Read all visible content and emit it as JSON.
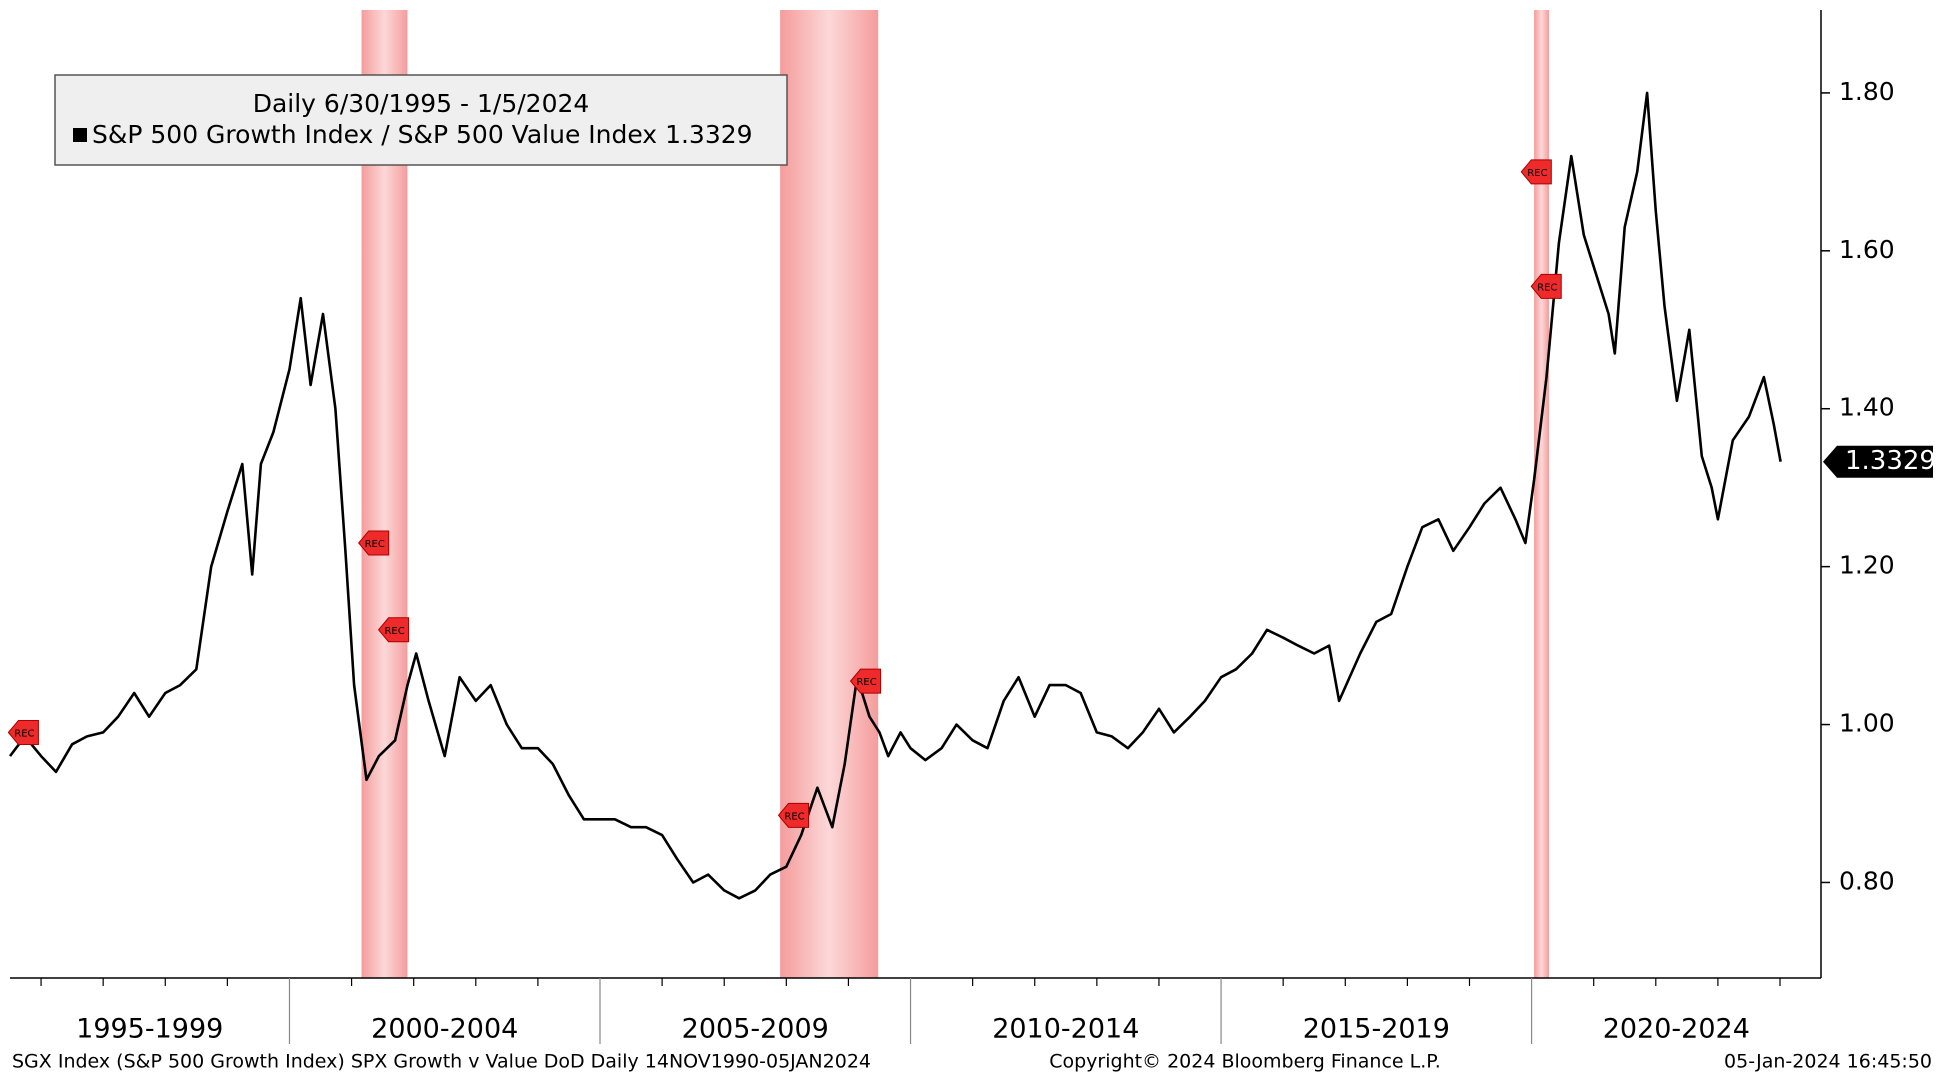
{
  "chart_data": {
    "type": "line",
    "legend_title": "Daily 6/30/1995 - 1/5/2024",
    "series": [
      {
        "name": "S&P 500 Growth Index / S&P 500 Value Index",
        "color": "#000000",
        "last_value": 1.3329,
        "values": [
          0.96,
          0.985,
          0.96,
          0.94,
          0.975,
          0.985,
          0.99,
          1.01,
          1.04,
          1.01,
          1.04,
          1.05,
          1.07,
          1.2,
          1.27,
          1.33,
          1.19,
          1.33,
          1.37,
          1.45,
          1.54,
          1.43,
          1.52,
          1.4,
          1.22,
          1.05,
          0.93,
          0.96,
          0.98,
          1.05,
          1.09,
          1.03,
          0.96,
          1.06,
          1.03,
          1.05,
          1.0,
          0.97,
          0.97,
          0.95,
          0.91,
          0.88,
          0.88,
          0.88,
          0.87,
          0.87,
          0.86,
          0.83,
          0.8,
          0.81,
          0.79,
          0.78,
          0.79,
          0.81,
          0.82,
          0.86,
          0.92,
          0.87,
          0.95,
          1.06,
          1.01,
          0.99,
          0.96,
          0.99,
          0.97,
          0.955,
          0.97,
          1.0,
          0.98,
          0.97,
          1.03,
          1.06,
          1.01,
          1.05,
          1.05,
          1.04,
          0.99,
          0.985,
          0.97,
          0.99,
          1.02,
          0.99,
          1.01,
          1.03,
          1.06,
          1.07,
          1.09,
          1.12,
          1.11,
          1.1,
          1.09,
          1.1,
          1.03,
          1.09,
          1.13,
          1.14,
          1.2,
          1.25,
          1.26,
          1.22,
          1.25,
          1.28,
          1.3,
          1.26,
          1.23,
          1.31,
          1.44,
          1.61,
          1.72,
          1.62,
          1.58,
          1.52,
          1.47,
          1.63,
          1.7,
          1.8,
          1.65,
          1.53,
          1.41,
          1.5,
          1.34,
          1.3,
          1.26,
          1.36,
          1.39,
          1.44,
          1.38,
          1.3329
        ]
      }
    ],
    "x": [
      1995.5,
      1995.74,
      1996.0,
      1996.24,
      1996.5,
      1996.74,
      1997.0,
      1997.24,
      1997.5,
      1997.74,
      1998.0,
      1998.24,
      1998.5,
      1998.74,
      1999.0,
      1999.24,
      1999.4,
      1999.54,
      1999.74,
      2000.0,
      2000.18,
      2000.34,
      2000.54,
      2000.74,
      2000.9,
      2001.04,
      2001.24,
      2001.44,
      2001.7,
      2001.9,
      2002.04,
      2002.24,
      2002.5,
      2002.74,
      2003.0,
      2003.24,
      2003.5,
      2003.74,
      2004.0,
      2004.24,
      2004.5,
      2004.74,
      2005.0,
      2005.24,
      2005.5,
      2005.74,
      2006.0,
      2006.24,
      2006.5,
      2006.74,
      2007.0,
      2007.24,
      2007.5,
      2007.74,
      2008.0,
      2008.24,
      2008.5,
      2008.74,
      2008.94,
      2009.14,
      2009.34,
      2009.5,
      2009.64,
      2009.84,
      2010.0,
      2010.24,
      2010.5,
      2010.74,
      2011.0,
      2011.24,
      2011.5,
      2011.74,
      2012.0,
      2012.24,
      2012.5,
      2012.74,
      2013.0,
      2013.24,
      2013.5,
      2013.74,
      2014.0,
      2014.24,
      2014.5,
      2014.74,
      2015.0,
      2015.24,
      2015.5,
      2015.74,
      2016.0,
      2016.24,
      2016.5,
      2016.74,
      2016.9,
      2017.24,
      2017.5,
      2017.74,
      2018.0,
      2018.24,
      2018.5,
      2018.74,
      2019.0,
      2019.24,
      2019.5,
      2019.74,
      2019.9,
      2020.04,
      2020.24,
      2020.44,
      2020.64,
      2020.84,
      2021.0,
      2021.24,
      2021.34,
      2021.5,
      2021.7,
      2021.86,
      2022.0,
      2022.14,
      2022.34,
      2022.54,
      2022.74,
      2022.9,
      2023.0,
      2023.24,
      2023.5,
      2023.74,
      2023.9,
      2024.01
    ],
    "xlim": [
      1995.5,
      2024.66
    ],
    "xticks": [
      1996,
      1997,
      1998,
      1999,
      2001,
      2002,
      2003,
      2004,
      2006,
      2007,
      2008,
      2009,
      2011,
      2012,
      2013,
      2014,
      2016,
      2017,
      2018,
      2019,
      2021,
      2022,
      2023,
      2024
    ],
    "periods": [
      {
        "label": "1995-1999",
        "start": 1995,
        "end": 2000
      },
      {
        "label": "2000-2004",
        "start": 2000,
        "end": 2005
      },
      {
        "label": "2005-2009",
        "start": 2005,
        "end": 2010
      },
      {
        "label": "2010-2014",
        "start": 2010,
        "end": 2015
      },
      {
        "label": "2015-2019",
        "start": 2015,
        "end": 2020
      },
      {
        "label": "2020-2024",
        "start": 2020,
        "end": 2025
      }
    ],
    "ylim": [
      0.679,
      1.905
    ],
    "yticks": [
      {
        "value": 0.8,
        "label": "0.80"
      },
      {
        "value": 1.0,
        "label": "1.00"
      },
      {
        "value": 1.2,
        "label": "1.20"
      },
      {
        "value": 1.4,
        "label": "1.40"
      },
      {
        "value": 1.6,
        "label": "1.60"
      },
      {
        "value": 1.8,
        "label": "1.80"
      }
    ],
    "recessions": [
      {
        "start": 2001.16,
        "end": 2001.9
      },
      {
        "start": 2007.9,
        "end": 2009.48
      },
      {
        "start": 2020.04,
        "end": 2020.28
      }
    ],
    "rec_label": "REC",
    "rec_markers": [
      {
        "x": 1995.7,
        "y": 0.99
      },
      {
        "x": 2001.34,
        "y": 1.23
      },
      {
        "x": 2001.66,
        "y": 1.12
      },
      {
        "x": 2008.1,
        "y": 0.885
      },
      {
        "x": 2009.26,
        "y": 1.055
      },
      {
        "x": 2020.06,
        "y": 1.7
      },
      {
        "x": 2020.22,
        "y": 1.555
      }
    ],
    "footer_left": "SGX Index (S&P 500 Growth Index) SPX Growth v Value DoD  Daily 14NOV1990-05JAN2024",
    "footer_center": "Copyright© 2024 Bloomberg Finance L.P.",
    "footer_right": "05-Jan-2024 16:45:50"
  }
}
